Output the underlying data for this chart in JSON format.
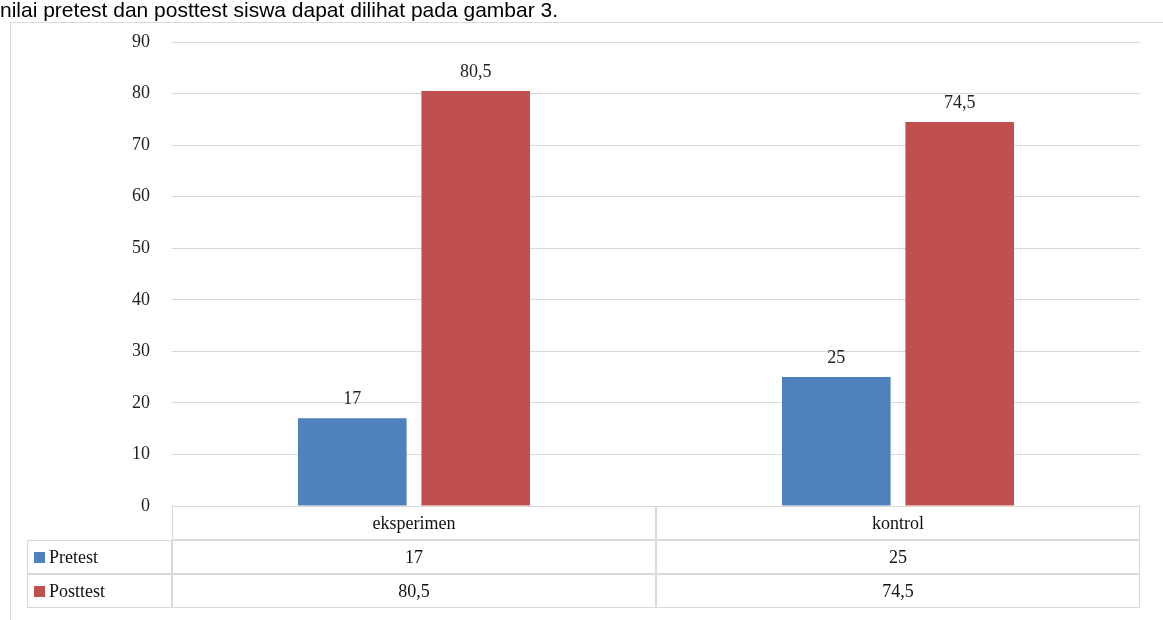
{
  "chart_data": {
    "type": "bar",
    "annotations": [
      "nilai pretest dan posttest siswa dapat dilihat pada gambar 3."
    ],
    "categories": [
      "eksperimen",
      "kontrol"
    ],
    "series": [
      {
        "name": "Pretest",
        "color": "#4f81bd",
        "values": [
          17,
          25
        ],
        "value_labels": [
          "17",
          "25"
        ]
      },
      {
        "name": "Posttest",
        "color": "#c0504d",
        "values": [
          80.5,
          74.5
        ],
        "value_labels": [
          "80,5",
          "74,5"
        ]
      }
    ],
    "ylim": [
      0,
      90
    ],
    "yticks": [
      0,
      10,
      20,
      30,
      40,
      50,
      60,
      70,
      80,
      90
    ],
    "grid": "y",
    "legend": "bottom"
  }
}
